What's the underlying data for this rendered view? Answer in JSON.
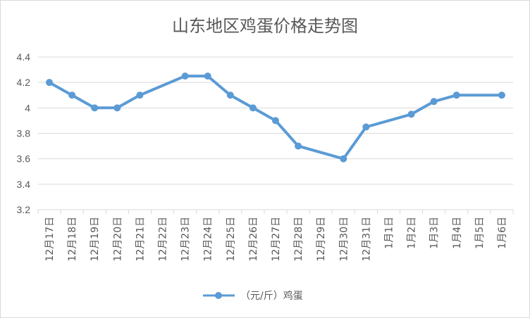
{
  "chart_data": {
    "type": "line",
    "title": "山东地区鸡蛋价格走势图",
    "xlabel": "",
    "ylabel": "",
    "categories": [
      "12月17日",
      "12月18日",
      "12月19日",
      "12月20日",
      "12月21日",
      "12月22日",
      "12月23日",
      "12月24日",
      "12月25日",
      "12月26日",
      "12月27日",
      "12月28日",
      "12月29日",
      "12月30日",
      "12月31日",
      "1月1日",
      "1月2日",
      "1月3日",
      "1月4日",
      "1月5日",
      "1月6日"
    ],
    "series": [
      {
        "name": "（元/斤）鸡蛋",
        "values": [
          4.2,
          4.1,
          4.0,
          4.0,
          4.1,
          null,
          4.25,
          4.25,
          4.1,
          4.0,
          3.9,
          3.7,
          null,
          3.6,
          3.85,
          null,
          3.95,
          4.05,
          4.1,
          null,
          4.1
        ]
      }
    ],
    "ylim": [
      3.2,
      4.4
    ],
    "yticks": [
      "3.2",
      "3.4",
      "3.6",
      "3.8",
      "4",
      "4.2",
      "4.4"
    ],
    "grid": true,
    "legend_position": "bottom",
    "colors": {
      "series": "#5b9bd5",
      "grid": "#d9d9d9",
      "text": "#595959"
    }
  }
}
